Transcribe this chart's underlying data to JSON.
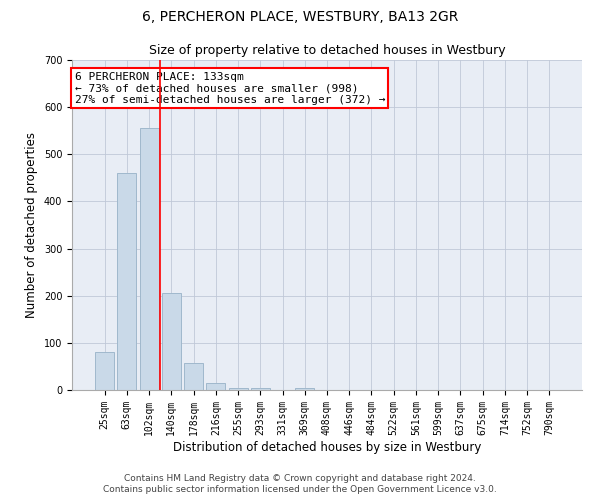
{
  "title": "6, PERCHERON PLACE, WESTBURY, BA13 2GR",
  "subtitle": "Size of property relative to detached houses in Westbury",
  "xlabel": "Distribution of detached houses by size in Westbury",
  "ylabel": "Number of detached properties",
  "categories": [
    "25sqm",
    "63sqm",
    "102sqm",
    "140sqm",
    "178sqm",
    "216sqm",
    "255sqm",
    "293sqm",
    "331sqm",
    "369sqm",
    "408sqm",
    "446sqm",
    "484sqm",
    "522sqm",
    "561sqm",
    "599sqm",
    "637sqm",
    "675sqm",
    "714sqm",
    "752sqm",
    "790sqm"
  ],
  "values": [
    80,
    460,
    555,
    205,
    57,
    15,
    5,
    5,
    0,
    5,
    0,
    0,
    0,
    0,
    0,
    0,
    0,
    0,
    0,
    0,
    0
  ],
  "bar_color": "#c9d9e8",
  "bar_edge_color": "#a0b8cc",
  "red_line_x": 2.5,
  "annotation_line1": "6 PERCHERON PLACE: 133sqm",
  "annotation_line2": "← 73% of detached houses are smaller (998)",
  "annotation_line3": "27% of semi-detached houses are larger (372) →",
  "annotation_box_color": "white",
  "annotation_box_edge_color": "red",
  "red_line_color": "red",
  "ylim": [
    0,
    700
  ],
  "yticks": [
    0,
    100,
    200,
    300,
    400,
    500,
    600,
    700
  ],
  "grid_color": "#c0c8d8",
  "background_color": "#e8edf5",
  "footer_line1": "Contains HM Land Registry data © Crown copyright and database right 2024.",
  "footer_line2": "Contains public sector information licensed under the Open Government Licence v3.0.",
  "title_fontsize": 10,
  "subtitle_fontsize": 9,
  "axis_label_fontsize": 8.5,
  "tick_fontsize": 7,
  "annotation_fontsize": 8,
  "footer_fontsize": 6.5
}
